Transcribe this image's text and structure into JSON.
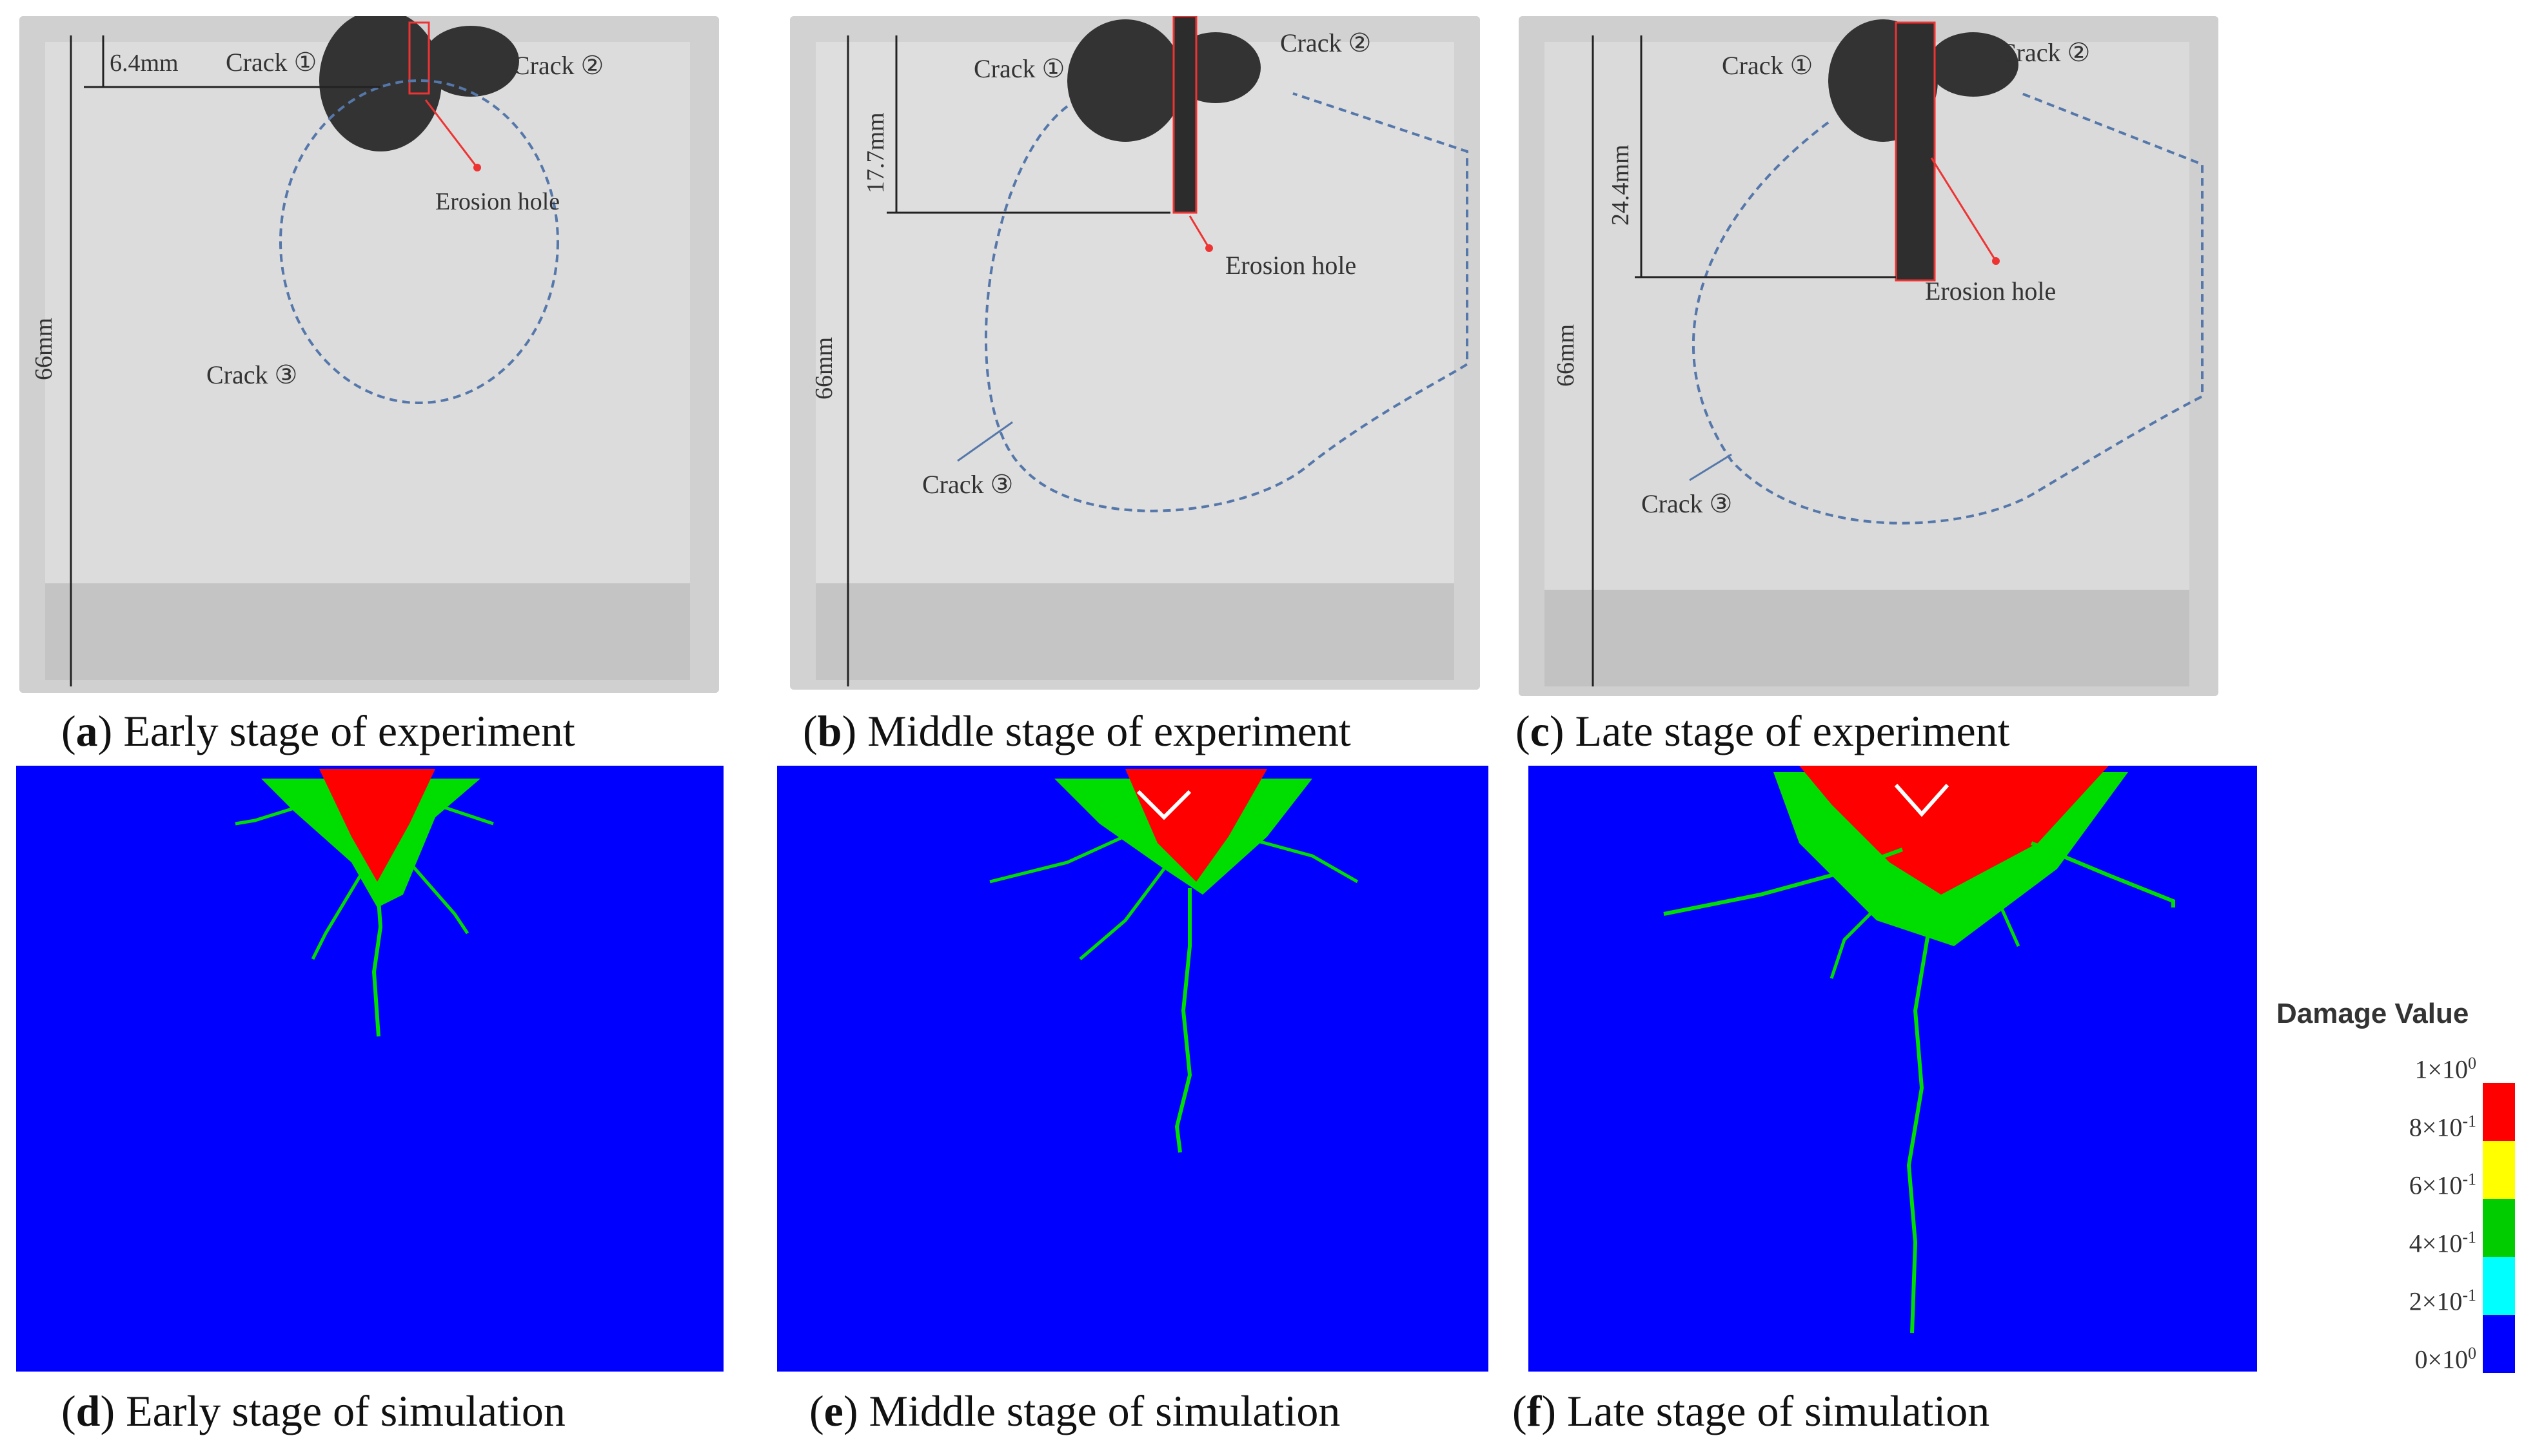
{
  "figure": {
    "panels": [
      {
        "letter": "a",
        "caption": "Early stage of experiment"
      },
      {
        "letter": "b",
        "caption": "Middle stage of experiment"
      },
      {
        "letter": "c",
        "caption": "Late stage of experiment"
      },
      {
        "letter": "d",
        "caption": "Early stage of simulation"
      },
      {
        "letter": "e",
        "caption": "Middle stage of simulation"
      },
      {
        "letter": "f",
        "caption": "Late stage of simulation"
      }
    ],
    "annotations": {
      "crack1": "Crack ①",
      "crack2": "Crack ②",
      "crack3": "Crack ③",
      "erosion_hole": "Erosion hole",
      "height": "66mm",
      "depth_a": "6.4mm",
      "depth_b": "17.7mm",
      "depth_c": "24.4mm"
    },
    "legend": {
      "title": "Damage Value",
      "ticks": [
        {
          "mantissa": "1×10",
          "exp": "0"
        },
        {
          "mantissa": "8×10",
          "exp": "-1"
        },
        {
          "mantissa": "6×10",
          "exp": "-1"
        },
        {
          "mantissa": "4×10",
          "exp": "-1"
        },
        {
          "mantissa": "2×10",
          "exp": "-1"
        },
        {
          "mantissa": "0×10",
          "exp": "0"
        }
      ],
      "colors": [
        "#ff0000",
        "#ffff00",
        "#00cc00",
        "#00ffff",
        "#0000ff"
      ]
    },
    "colors": {
      "background_sim": "#0000ff",
      "damage_high": "#ff0000",
      "damage_mid": "#00dd00",
      "crack_outline": "#5577aa"
    }
  }
}
